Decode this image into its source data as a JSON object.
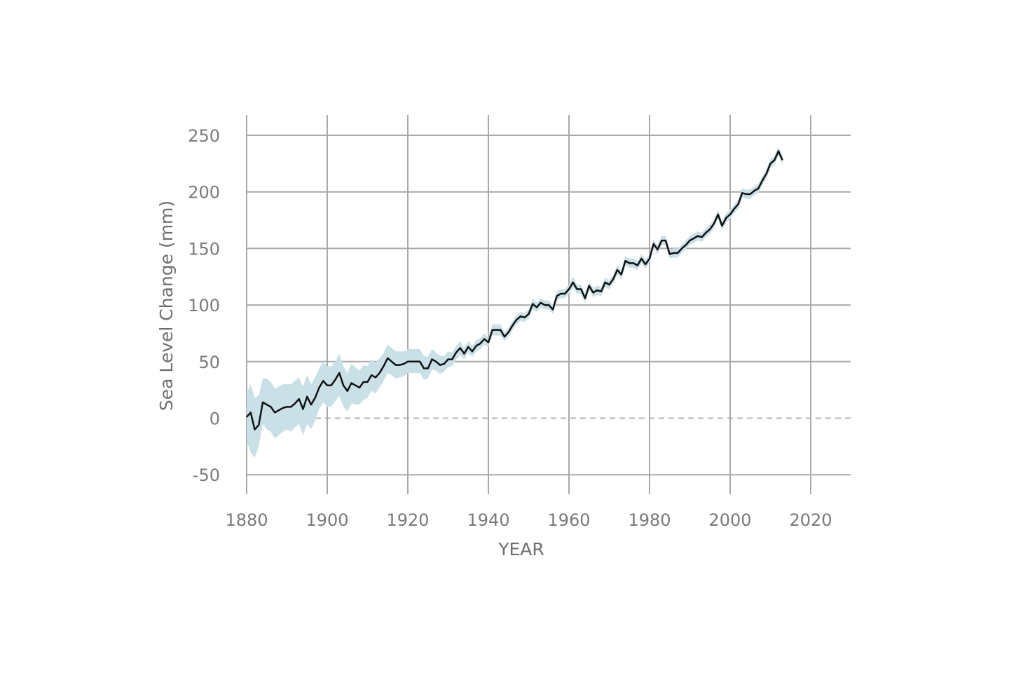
{
  "chart_data": {
    "type": "line",
    "title": "",
    "xlabel": "YEAR",
    "ylabel": "Sea Level Change (mm)",
    "xlim": [
      1880,
      2030
    ],
    "ylim": [
      -67,
      268
    ],
    "x_ticks": [
      1880,
      1900,
      1920,
      1940,
      1960,
      1980,
      2000,
      2020
    ],
    "y_ticks": [
      -50,
      0,
      50,
      100,
      150,
      200,
      250
    ],
    "grid": true,
    "zero_line": "dashed",
    "colors": {
      "line": "#111111",
      "band": "#c9e0e7",
      "grid": "#a9a9a9",
      "text": "#7a7a7a"
    },
    "series": [
      {
        "x": [
          1880,
          1881,
          1882,
          1883,
          1884,
          1885,
          1886,
          1887,
          1888,
          1889,
          1890,
          1891,
          1892,
          1893,
          1894,
          1895,
          1896,
          1897,
          1898,
          1899,
          1900,
          1901,
          1902,
          1903,
          1904,
          1905,
          1906,
          1907,
          1908,
          1909,
          1910,
          1911,
          1912,
          1913,
          1914,
          1915,
          1916,
          1917,
          1918,
          1919,
          1920,
          1921,
          1922,
          1923,
          1924,
          1925,
          1926,
          1927,
          1928,
          1929,
          1930,
          1931,
          1932,
          1933,
          1934,
          1935,
          1936,
          1937,
          1938,
          1939,
          1940,
          1941,
          1942,
          1943,
          1944,
          1945,
          1946,
          1947,
          1948,
          1949,
          1950,
          1951,
          1952,
          1953,
          1954,
          1955,
          1956,
          1957,
          1958,
          1959,
          1960,
          1961,
          1962,
          1963,
          1964,
          1965,
          1966,
          1967,
          1968,
          1969,
          1970,
          1971,
          1972,
          1973,
          1974,
          1975,
          1976,
          1977,
          1978,
          1979,
          1980,
          1981,
          1982,
          1983,
          1984,
          1985,
          1986,
          1987,
          1988,
          1989,
          1990,
          1991,
          1992,
          1993,
          1994,
          1995,
          1996,
          1997,
          1998,
          1999,
          2000,
          2001,
          2002,
          2003,
          2004,
          2005,
          2006,
          2007,
          2008,
          2009,
          2010,
          2011,
          2012,
          2013
        ],
        "y": [
          1,
          5,
          -10,
          -6,
          14,
          12,
          10,
          5,
          7,
          9,
          10,
          10,
          13,
          17,
          8,
          19,
          12,
          18,
          27,
          33,
          29,
          29,
          34,
          40,
          29,
          24,
          31,
          29,
          27,
          32,
          32,
          38,
          36,
          40,
          46,
          53,
          50,
          47,
          47,
          48,
          50,
          50,
          50,
          50,
          44,
          44,
          52,
          50,
          47,
          48,
          52,
          52,
          58,
          62,
          57,
          63,
          59,
          64,
          66,
          70,
          67,
          78,
          78,
          78,
          72,
          76,
          82,
          87,
          90,
          89,
          92,
          101,
          98,
          102,
          100,
          100,
          96,
          108,
          110,
          110,
          114,
          120,
          114,
          114,
          106,
          117,
          111,
          113,
          112,
          120,
          118,
          123,
          131,
          127,
          139,
          137,
          137,
          135,
          141,
          136,
          141,
          154,
          149,
          157,
          157,
          145,
          146,
          146,
          150,
          153,
          157,
          159,
          161,
          160,
          164,
          167,
          172,
          180,
          170,
          177,
          180,
          185,
          189,
          199,
          198,
          198,
          201,
          203,
          210,
          216,
          225,
          228,
          236,
          228
        ],
        "lower": [
          -20,
          -30,
          -35,
          -25,
          -5,
          -10,
          -12,
          -18,
          -15,
          -12,
          -10,
          -12,
          -8,
          -5,
          -15,
          -5,
          -10,
          -2,
          8,
          14,
          10,
          10,
          15,
          20,
          10,
          6,
          13,
          12,
          12,
          16,
          18,
          24,
          22,
          27,
          33,
          40,
          38,
          35,
          36,
          37,
          40,
          40,
          40,
          40,
          34,
          35,
          43,
          42,
          39,
          41,
          45,
          46,
          52,
          56,
          52,
          58,
          54,
          59,
          61,
          65,
          63,
          73,
          73,
          73,
          68,
          72,
          78,
          83,
          86,
          85,
          88,
          96,
          94,
          98,
          96,
          96,
          92,
          104,
          106,
          106,
          110,
          115,
          110,
          110,
          102,
          113,
          107,
          109,
          108,
          116,
          114,
          119,
          127,
          123,
          135,
          133,
          133,
          131,
          137,
          132,
          137,
          150,
          145,
          153,
          153,
          141,
          142,
          142,
          146,
          149,
          153,
          155,
          157,
          156,
          160,
          163,
          168,
          176,
          166,
          173,
          176,
          181,
          185,
          195,
          194,
          194,
          197,
          199,
          206,
          212,
          221,
          224,
          232,
          224
        ],
        "upper": [
          22,
          30,
          18,
          20,
          35,
          35,
          32,
          26,
          28,
          30,
          30,
          30,
          33,
          36,
          28,
          38,
          30,
          36,
          44,
          50,
          46,
          46,
          50,
          57,
          46,
          40,
          48,
          45,
          42,
          47,
          46,
          52,
          49,
          53,
          58,
          65,
          62,
          59,
          59,
          59,
          61,
          61,
          61,
          61,
          55,
          54,
          61,
          58,
          55,
          55,
          59,
          58,
          64,
          68,
          62,
          68,
          64,
          69,
          71,
          75,
          71,
          83,
          83,
          83,
          76,
          80,
          86,
          91,
          94,
          93,
          96,
          106,
          102,
          106,
          104,
          104,
          100,
          112,
          114,
          114,
          118,
          125,
          118,
          118,
          110,
          121,
          115,
          117,
          116,
          124,
          122,
          127,
          135,
          131,
          143,
          141,
          141,
          139,
          145,
          140,
          145,
          158,
          153,
          161,
          161,
          149,
          150,
          150,
          154,
          157,
          161,
          163,
          165,
          164,
          168,
          171,
          176,
          184,
          174,
          181,
          184,
          189,
          193,
          203,
          202,
          202,
          205,
          207,
          214,
          220,
          229,
          232,
          240,
          232
        ]
      }
    ]
  }
}
